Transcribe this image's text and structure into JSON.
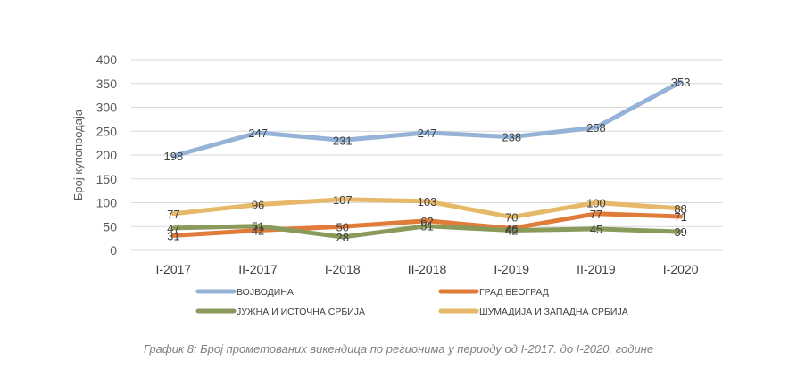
{
  "chart_data": {
    "type": "line",
    "categories": [
      "I-2017",
      "II-2017",
      "I-2018",
      "II-2018",
      "I-2019",
      "II-2019",
      "I-2020"
    ],
    "ylabel": "Број купопродаја",
    "ylim": [
      0,
      400
    ],
    "yticks": [
      0,
      50,
      100,
      150,
      200,
      250,
      300,
      350,
      400
    ],
    "grid": true,
    "legend_position": "bottom",
    "series": [
      {
        "name": "ВОЈВОДИНА",
        "color": "#95B3D7",
        "values": [
          198,
          247,
          231,
          247,
          238,
          258,
          353
        ]
      },
      {
        "name": "ГРАД БЕОГРАД",
        "color": "#E07B39",
        "values": [
          31,
          42,
          50,
          62,
          46,
          77,
          71
        ]
      },
      {
        "name": "ЈУЖНА И ИСТОЧНА СРБИЈА",
        "color": "#8A9A5B",
        "values": [
          47,
          51,
          28,
          51,
          42,
          45,
          39
        ]
      },
      {
        "name": "ШУМАДИЈА И ЗАПАДНА СРБИЈА",
        "color": "#E6B96A",
        "values": [
          77,
          96,
          107,
          103,
          70,
          100,
          88
        ]
      }
    ]
  },
  "caption": "График 8: Број прометованих викендица по регионима у периоду од I-2017. до I-2020. године"
}
